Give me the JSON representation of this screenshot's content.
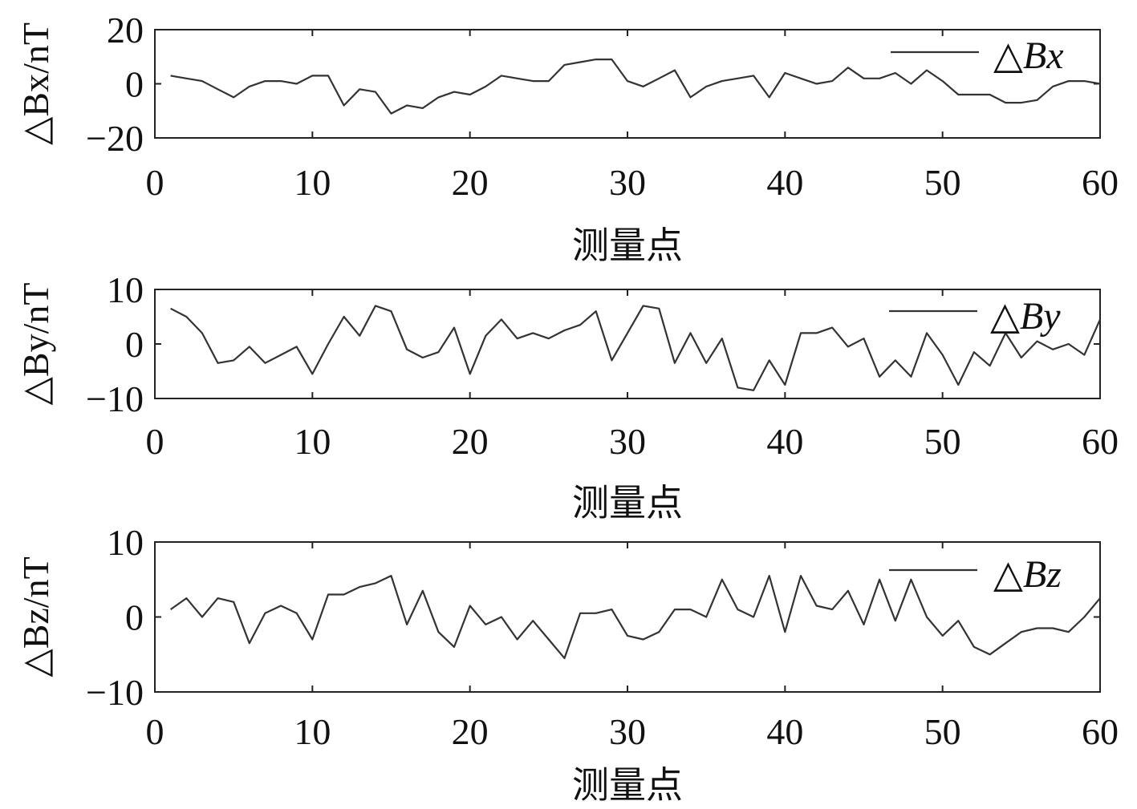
{
  "chart_data": [
    {
      "type": "line",
      "ylabel": "△Bx/nT",
      "xlabel": "测量点",
      "xlim": [
        0,
        60
      ],
      "ylim": [
        -20,
        20
      ],
      "xticks": [
        "0",
        "10",
        "20",
        "30",
        "40",
        "50",
        "60"
      ],
      "yticks": [
        "20",
        "0",
        "−20"
      ],
      "grid": false,
      "legend_position": "top-right",
      "series": [
        {
          "name": "△Bx",
          "color": "#333333",
          "x": [
            1,
            2,
            3,
            4,
            5,
            6,
            7,
            8,
            9,
            10,
            11,
            12,
            13,
            14,
            15,
            16,
            17,
            18,
            19,
            20,
            21,
            22,
            23,
            24,
            25,
            26,
            27,
            28,
            29,
            30,
            31,
            32,
            33,
            34,
            35,
            36,
            37,
            38,
            39,
            40,
            41,
            42,
            43,
            44,
            45,
            46,
            47,
            48,
            49,
            50,
            51,
            52,
            53,
            54,
            55,
            56,
            57,
            58,
            59,
            60
          ],
          "values": [
            3,
            2,
            1,
            -2,
            -5,
            -1,
            1,
            1,
            0,
            3,
            3,
            -8,
            -2,
            -3,
            -11,
            -8,
            -9,
            -5,
            -3,
            -4,
            -1,
            3,
            2,
            1,
            1,
            7,
            8,
            9,
            9,
            1,
            -1,
            2,
            5,
            -5,
            -1,
            1,
            2,
            3,
            -5,
            4,
            2,
            0,
            1,
            6,
            2,
            2,
            4,
            0,
            5,
            1,
            -4,
            -4,
            -4,
            -7,
            -7,
            -6,
            -1,
            1,
            1,
            0
          ]
        }
      ]
    },
    {
      "type": "line",
      "ylabel": "△By/nT",
      "xlabel": "测量点",
      "xlim": [
        0,
        60
      ],
      "ylim": [
        -10,
        10
      ],
      "xticks": [
        "0",
        "10",
        "20",
        "30",
        "40",
        "50",
        "60"
      ],
      "yticks": [
        "10",
        "0",
        "−10"
      ],
      "grid": false,
      "legend_position": "top-right",
      "series": [
        {
          "name": "△By",
          "color": "#333333",
          "x": [
            1,
            2,
            3,
            4,
            5,
            6,
            7,
            8,
            9,
            10,
            11,
            12,
            13,
            14,
            15,
            16,
            17,
            18,
            19,
            20,
            21,
            22,
            23,
            24,
            25,
            26,
            27,
            28,
            29,
            30,
            31,
            32,
            33,
            34,
            35,
            36,
            37,
            38,
            39,
            40,
            41,
            42,
            43,
            44,
            45,
            46,
            47,
            48,
            49,
            50,
            51,
            52,
            53,
            54,
            55,
            56,
            57,
            58,
            59,
            60
          ],
          "values": [
            6.5,
            5,
            2,
            -3.5,
            -3,
            -0.5,
            -3.5,
            -2,
            -0.5,
            -5.5,
            0,
            5,
            1.5,
            7,
            6,
            -1,
            -2.5,
            -1.5,
            3,
            -5.5,
            1.5,
            4.5,
            1,
            2,
            1,
            2.5,
            3.5,
            6,
            -3,
            2,
            7,
            6.5,
            -3.5,
            2,
            -3.5,
            1,
            -8,
            -8.5,
            -3,
            -7.5,
            2,
            2,
            3,
            -0.5,
            1,
            -6,
            -3,
            -6,
            2,
            -2,
            -7.5,
            -1.5,
            -4,
            2,
            -2.5,
            0.5,
            -1,
            0,
            -2,
            4.5
          ]
        }
      ]
    },
    {
      "type": "line",
      "ylabel": "△Bz/nT",
      "xlabel": "测量点",
      "xlim": [
        0,
        60
      ],
      "ylim": [
        -10,
        10
      ],
      "xticks": [
        "0",
        "10",
        "20",
        "30",
        "40",
        "50",
        "60"
      ],
      "yticks": [
        "10",
        "0",
        "−10"
      ],
      "grid": false,
      "legend_position": "top-right",
      "series": [
        {
          "name": "△Bz",
          "color": "#333333",
          "x": [
            1,
            2,
            3,
            4,
            5,
            6,
            7,
            8,
            9,
            10,
            11,
            12,
            13,
            14,
            15,
            16,
            17,
            18,
            19,
            20,
            21,
            22,
            23,
            24,
            25,
            26,
            27,
            28,
            29,
            30,
            31,
            32,
            33,
            34,
            35,
            36,
            37,
            38,
            39,
            40,
            41,
            42,
            43,
            44,
            45,
            46,
            47,
            48,
            49,
            50,
            51,
            52,
            53,
            54,
            55,
            56,
            57,
            58,
            59,
            60
          ],
          "values": [
            1,
            2.5,
            0,
            2.5,
            2,
            -3.5,
            0.5,
            1.5,
            0.5,
            -3,
            3,
            3,
            4,
            4.5,
            5.5,
            -1,
            3.5,
            -2,
            -4,
            1.5,
            -1,
            0,
            -3,
            -0.5,
            -3,
            -5.5,
            0.5,
            0.5,
            1,
            -2.5,
            -3,
            -2,
            1,
            1,
            0,
            5,
            1,
            0,
            5.5,
            -2,
            5.5,
            1.5,
            1,
            3.5,
            -1,
            5,
            -0.5,
            5,
            0,
            -2.5,
            -0.5,
            -4,
            -5,
            -3.5,
            -2,
            -1.5,
            -1.5,
            -2,
            0,
            2.5
          ]
        }
      ]
    }
  ]
}
